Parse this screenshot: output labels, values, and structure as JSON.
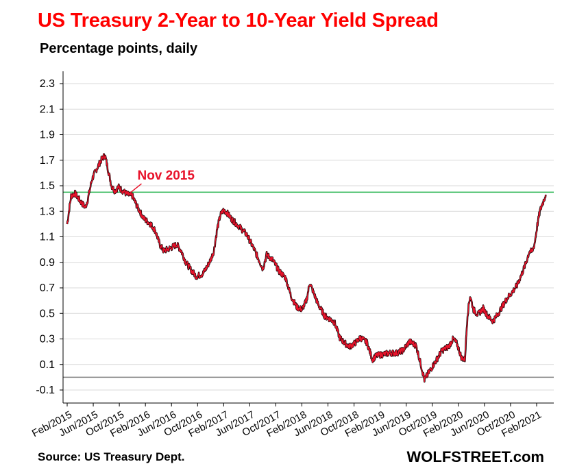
{
  "chart_data": {
    "type": "line",
    "title": "US Treasury 2-Year to 10-Year Yield Spread",
    "subtitle": "Percentage points, daily",
    "xlabel": "",
    "ylabel": "",
    "ylim": [
      -0.1,
      2.3
    ],
    "yticks": [
      "2.3",
      "2.1",
      "1.9",
      "1.7",
      "1.5",
      "1.3",
      "1.1",
      "0.9",
      "0.7",
      "0.5",
      "0.3",
      "0.1",
      "-0.1"
    ],
    "xticks": [
      "Feb/2015",
      "Jun/2015",
      "Oct/2015",
      "Feb/2016",
      "Jun/2016",
      "Oct/2016",
      "Feb/2017",
      "Jun/2017",
      "Oct/2017",
      "Feb/2018",
      "Jun/2018",
      "Oct/2018",
      "Feb/2019",
      "Jun/2019",
      "Oct/2019",
      "Feb/2020",
      "Jun/2020",
      "Oct/2020",
      "Feb/2021"
    ],
    "x_range_months": [
      0,
      74
    ],
    "grid": true,
    "series": [
      {
        "name": "2-Year to 10-Year spread",
        "color": "#e8132b",
        "points": [
          [
            0.0,
            1.2
          ],
          [
            0.6,
            1.42
          ],
          [
            1.2,
            1.44
          ],
          [
            2.0,
            1.38
          ],
          [
            2.8,
            1.33
          ],
          [
            3.2,
            1.4
          ],
          [
            3.8,
            1.55
          ],
          [
            4.5,
            1.63
          ],
          [
            5.2,
            1.7
          ],
          [
            5.8,
            1.74
          ],
          [
            6.3,
            1.62
          ],
          [
            6.8,
            1.5
          ],
          [
            7.3,
            1.46
          ],
          [
            7.9,
            1.49
          ],
          [
            8.5,
            1.46
          ],
          [
            9.3,
            1.43
          ],
          [
            10.0,
            1.42
          ],
          [
            10.8,
            1.33
          ],
          [
            11.8,
            1.24
          ],
          [
            12.8,
            1.2
          ],
          [
            13.5,
            1.15
          ],
          [
            14.2,
            1.04
          ],
          [
            14.8,
            0.99
          ],
          [
            15.8,
            1.01
          ],
          [
            16.8,
            1.04
          ],
          [
            17.5,
            0.99
          ],
          [
            18.2,
            0.9
          ],
          [
            19.0,
            0.84
          ],
          [
            19.8,
            0.79
          ],
          [
            20.8,
            0.81
          ],
          [
            21.5,
            0.87
          ],
          [
            22.0,
            0.92
          ],
          [
            22.5,
            0.99
          ],
          [
            23.0,
            1.16
          ],
          [
            23.5,
            1.27
          ],
          [
            24.0,
            1.31
          ],
          [
            24.5,
            1.29
          ],
          [
            25.2,
            1.24
          ],
          [
            26.2,
            1.19
          ],
          [
            27.5,
            1.12
          ],
          [
            28.5,
            1.02
          ],
          [
            29.5,
            0.91
          ],
          [
            30.0,
            0.85
          ],
          [
            30.6,
            0.96
          ],
          [
            31.5,
            0.92
          ],
          [
            32.5,
            0.83
          ],
          [
            33.5,
            0.78
          ],
          [
            34.3,
            0.64
          ],
          [
            35.2,
            0.55
          ],
          [
            36.0,
            0.53
          ],
          [
            36.7,
            0.6
          ],
          [
            37.2,
            0.74
          ],
          [
            37.8,
            0.66
          ],
          [
            38.5,
            0.57
          ],
          [
            39.5,
            0.48
          ],
          [
            40.5,
            0.45
          ],
          [
            41.0,
            0.43
          ],
          [
            41.8,
            0.31
          ],
          [
            42.5,
            0.27
          ],
          [
            43.3,
            0.24
          ],
          [
            44.2,
            0.27
          ],
          [
            45.0,
            0.31
          ],
          [
            46.0,
            0.27
          ],
          [
            46.8,
            0.14
          ],
          [
            47.5,
            0.17
          ],
          [
            48.5,
            0.18
          ],
          [
            49.5,
            0.19
          ],
          [
            50.5,
            0.19
          ],
          [
            51.5,
            0.21
          ],
          [
            52.5,
            0.28
          ],
          [
            53.5,
            0.25
          ],
          [
            54.2,
            0.11
          ],
          [
            54.8,
            -0.02
          ],
          [
            55.5,
            0.04
          ],
          [
            56.2,
            0.1
          ],
          [
            56.8,
            0.15
          ],
          [
            57.5,
            0.21
          ],
          [
            58.5,
            0.24
          ],
          [
            59.2,
            0.3
          ],
          [
            59.8,
            0.26
          ],
          [
            60.5,
            0.15
          ],
          [
            61.0,
            0.14
          ],
          [
            61.4,
            0.49
          ],
          [
            61.8,
            0.64
          ],
          [
            62.3,
            0.53
          ],
          [
            63.0,
            0.49
          ],
          [
            63.8,
            0.54
          ],
          [
            64.5,
            0.48
          ],
          [
            65.3,
            0.44
          ],
          [
            66.0,
            0.49
          ],
          [
            66.8,
            0.56
          ],
          [
            67.5,
            0.62
          ],
          [
            68.3,
            0.67
          ],
          [
            69.0,
            0.72
          ],
          [
            69.8,
            0.82
          ],
          [
            70.4,
            0.9
          ],
          [
            70.9,
            0.99
          ],
          [
            71.3,
            0.98
          ],
          [
            71.7,
            1.05
          ],
          [
            72.1,
            1.19
          ],
          [
            72.5,
            1.3
          ],
          [
            72.9,
            1.36
          ],
          [
            73.4,
            1.43
          ]
        ]
      }
    ],
    "reference_lines": [
      {
        "name": "Nov 2015 level",
        "y": 1.45,
        "color": "#22b24c"
      },
      {
        "name": "zero line",
        "y": 0.0,
        "color": "#808080"
      }
    ],
    "annotations": [
      {
        "text": "Nov 2015",
        "x": 9.3,
        "y": 1.43,
        "color": "#e8132b"
      }
    ]
  },
  "footer": {
    "source": "Source: US Treasury Dept.",
    "brand": "WOLFSTREET.com"
  }
}
